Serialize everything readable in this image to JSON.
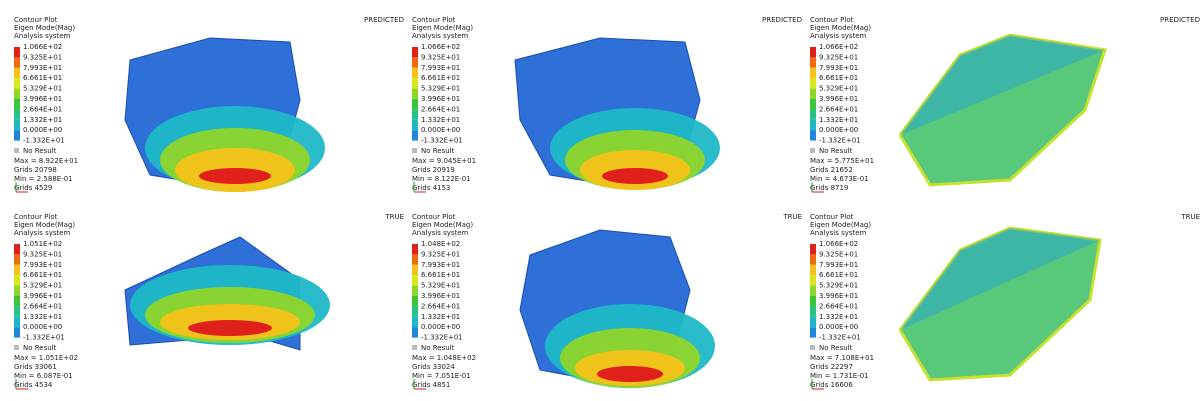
{
  "panels": [
    {
      "header": [
        "Contour Plot",
        "Eigen Mode(Mag)",
        "Analysis system"
      ],
      "legend": [
        "1.066E+02",
        "9.325E+01",
        "7.993E+01",
        "6.661E+01",
        "5.329E+01",
        "3.996E+01",
        "2.664E+01",
        "1.332E+01",
        "0.000E+00",
        "-1.332E+01"
      ],
      "no_result": "No Result",
      "stats": [
        "Max = 8.922E+01",
        "Grids 20798",
        "Min = 2.588E-01",
        "Grids 4529"
      ],
      "tag": "PREDICTED"
    },
    {
      "header": [
        "Contour Plot",
        "Eigen Mode(Mag)",
        "Analysis system"
      ],
      "legend": [
        "1.066E+02",
        "9.325E+01",
        "7.993E+01",
        "6.661E+01",
        "5.329E+01",
        "3.996E+01",
        "2.664E+01",
        "1.332E+01",
        "0.000E+00",
        "-1.332E+01"
      ],
      "no_result": "No Result",
      "stats": [
        "Max = 9.045E+01",
        "Grids 20919",
        "Min = 8.122E-01",
        "Grids 4153"
      ],
      "tag": "PREDICTED"
    },
    {
      "header": [
        "Contour Plot",
        "Eigen Mode(Mag)",
        "Analysis system"
      ],
      "legend": [
        "1.066E+02",
        "9.325E+01",
        "7.993E+01",
        "6.661E+01",
        "5.329E+01",
        "3.996E+01",
        "2.664E+01",
        "1.332E+01",
        "0.000E+00",
        "-1.332E+01"
      ],
      "no_result": "No Result",
      "stats": [
        "Max = 5.775E+01",
        "Grids 21652",
        "Min = 4.673E-01",
        "Grids 8719"
      ],
      "tag": "PREDICTED"
    },
    {
      "header": [
        "Contour Plot",
        "Eigen Mode(Mag)",
        "Analysis system"
      ],
      "legend": [
        "1.051E+02",
        "9.325E+01",
        "7.993E+01",
        "6.661E+01",
        "5.329E+01",
        "3.996E+01",
        "2.664E+01",
        "1.332E+01",
        "0.000E+00",
        "-1.332E+01"
      ],
      "no_result": "No Result",
      "stats": [
        "Max = 1.051E+02",
        "Grids 33061",
        "Min = 6.087E-01",
        "Grids 4534"
      ],
      "tag": "TRUE"
    },
    {
      "header": [
        "Contour Plot",
        "Eigen Mode(Mag)",
        "Analysis system"
      ],
      "legend": [
        "1.048E+02",
        "9.325E+01",
        "7.993E+01",
        "6.661E+01",
        "5.329E+01",
        "3.996E+01",
        "2.664E+01",
        "1.332E+01",
        "0.000E+00",
        "-1.332E+01"
      ],
      "no_result": "No Result",
      "stats": [
        "Max = 1.048E+02",
        "Grids 33024",
        "Min = 7.051E-01",
        "Grids 4851"
      ],
      "tag": "TRUE"
    },
    {
      "header": [
        "Contour Plot",
        "Eigen Mode(Mag)",
        "Analysis system"
      ],
      "legend": [
        "1.066E+02",
        "9.325E+01",
        "7.993E+01",
        "6.661E+01",
        "5.329E+01",
        "3.996E+01",
        "2.664E+01",
        "1.332E+01",
        "0.000E+00",
        "-1.332E+01"
      ],
      "no_result": "No Result",
      "stats": [
        "Max = 7.108E+01",
        "Grids 22297",
        "Min = 1.731E-01",
        "Grids 16606"
      ],
      "tag": "TRUE"
    }
  ]
}
